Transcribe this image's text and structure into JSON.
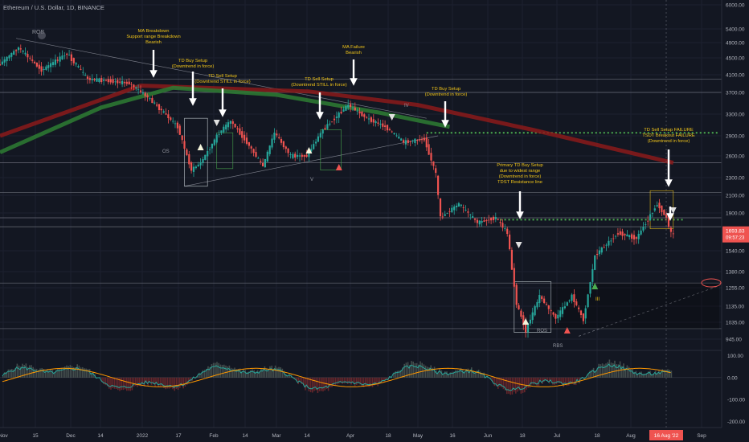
{
  "header": {
    "title": "Ethereum / U.S. Dollar, 1D, BINANCE"
  },
  "colors": {
    "background": "#131722",
    "up": "#26a69a",
    "down": "#ef5350",
    "annotation": "#f0c419",
    "ma_red": "#8b1a1a",
    "ma_green": "#2e7d32",
    "signal_green": "#4caf50",
    "price_tag": "#ef5350"
  },
  "price_axis": {
    "ticks": [
      "6000.00",
      "5400.00",
      "4900.00",
      "4500.00",
      "4100.00",
      "3700.00",
      "3300.00",
      "2900.00",
      "2600.00",
      "2300.00",
      "2100.00",
      "1900.00",
      "1540.00",
      "1380.00",
      "1255.00",
      "1135.00",
      "1035.00",
      "945.00"
    ],
    "current_price": "1693.83",
    "countdown": "09:57:23"
  },
  "indicator_axis": {
    "ticks": [
      "100.00",
      "0.00",
      "-100.00",
      "-200.00"
    ]
  },
  "time_axis": {
    "ticks": [
      "Nov",
      "15",
      "Dec",
      "14",
      "2022",
      "17",
      "Feb",
      "14",
      "Mar",
      "14",
      "Apr",
      "18",
      "May",
      "16",
      "Jun",
      "18",
      "Jul",
      "18",
      "Aug",
      "Sep"
    ],
    "current_date": "16 Aug '22"
  },
  "annotations": {
    "ma_breakdown": [
      "MA Breakdown",
      "Support range Breakdown",
      "Bearish"
    ],
    "td_buy_1": [
      "TD Buy Setup",
      "(Downtrend in force)"
    ],
    "td_sell_1": [
      "TD Sell Setup",
      "(Downtrend STILL in force)"
    ],
    "td_sell_2": [
      "TD Sell Setup",
      "(Downtrend STILL in force)"
    ],
    "ma_failure": [
      "MA Failure",
      "Bearish"
    ],
    "td_buy_2": [
      "TD Buy Setup",
      "(Downtrend in force)"
    ],
    "primary_td_buy": [
      "Primary TD Buy Setup",
      "due to widest range",
      "(Downtrend in force)",
      "TDST Resistance line"
    ],
    "td_sell_failure": [
      "TD Sell Setup FAILURE",
      "TSDT Breakout FAILURE",
      "(Downtrend in force)"
    ]
  },
  "markers": {
    "rob": "ROB",
    "os": "OS",
    "iv": "IV",
    "v": "V",
    "iii": "III",
    "ros": "ROS",
    "rbs": "RBS"
  },
  "chart_data": {
    "type": "candlestick",
    "title": "Ethereum / U.S. Dollar, 1D, BINANCE",
    "symbol": "ETHUSD",
    "interval": "1D",
    "exchange": "BINANCE",
    "ylim": [
      900,
      6100
    ],
    "y_scale": "log",
    "x_range": [
      "2021-11-01",
      "2022-09-10"
    ],
    "price_path": [
      [
        "2021-11-01",
        4300
      ],
      [
        "2021-11-10",
        4750
      ],
      [
        "2021-11-20",
        4200
      ],
      [
        "2021-12-01",
        4600
      ],
      [
        "2021-12-10",
        4000
      ],
      [
        "2021-12-20",
        3950
      ],
      [
        "2021-12-28",
        3900
      ],
      [
        "2022-01-05",
        3600
      ],
      [
        "2022-01-12",
        3300
      ],
      [
        "2022-01-18",
        3050
      ],
      [
        "2022-01-24",
        2400
      ],
      [
        "2022-01-28",
        2500
      ],
      [
        "2022-02-05",
        2950
      ],
      [
        "2022-02-10",
        3150
      ],
      [
        "2022-02-18",
        2750
      ],
      [
        "2022-02-24",
        2450
      ],
      [
        "2022-03-01",
        2950
      ],
      [
        "2022-03-08",
        2600
      ],
      [
        "2022-03-15",
        2600
      ],
      [
        "2022-03-22",
        3000
      ],
      [
        "2022-04-02",
        3450
      ],
      [
        "2022-04-10",
        3200
      ],
      [
        "2022-04-18",
        3050
      ],
      [
        "2022-04-26",
        2800
      ],
      [
        "2022-05-05",
        2850
      ],
      [
        "2022-05-10",
        2350
      ],
      [
        "2022-05-12",
        1850
      ],
      [
        "2022-05-20",
        2000
      ],
      [
        "2022-05-28",
        1800
      ],
      [
        "2022-06-05",
        1850
      ],
      [
        "2022-06-10",
        1700
      ],
      [
        "2022-06-14",
        1150
      ],
      [
        "2022-06-18",
        990
      ],
      [
        "2022-06-24",
        1200
      ],
      [
        "2022-07-01",
        1060
      ],
      [
        "2022-07-08",
        1200
      ],
      [
        "2022-07-13",
        1050
      ],
      [
        "2022-07-18",
        1500
      ],
      [
        "2022-07-28",
        1700
      ],
      [
        "2022-08-05",
        1650
      ],
      [
        "2022-08-14",
        2000
      ],
      [
        "2022-08-18",
        1850
      ],
      [
        "2022-08-20",
        1694
      ]
    ],
    "horizontal_levels": [
      4000,
      3700,
      2500,
      2130,
      1850,
      1760,
      1290,
      1000
    ],
    "dotted_levels": [
      2950,
      1830
    ],
    "moving_averages": [
      {
        "points": [
          [
            "2021-11-01",
            2900
          ],
          [
            "2022-01-01",
            3850
          ],
          [
            "2022-03-15",
            3720
          ],
          [
            "2022-05-01",
            3450
          ],
          [
            "2022-06-20",
            3000
          ],
          [
            "2022-08-20",
            2500
          ]
        ]
      },
      {
        "points": [
          [
            "2021-11-01",
            2650
          ],
          [
            "2021-12-15",
            3400
          ],
          [
            "2022-01-15",
            3800
          ],
          [
            "2022-03-01",
            3650
          ],
          [
            "2022-04-15",
            3300
          ],
          [
            "2022-05-15",
            3050
          ]
        ]
      }
    ],
    "indicator": {
      "ylim": [
        -220,
        120
      ],
      "ticks": [
        100,
        0,
        -100,
        -200
      ]
    }
  }
}
